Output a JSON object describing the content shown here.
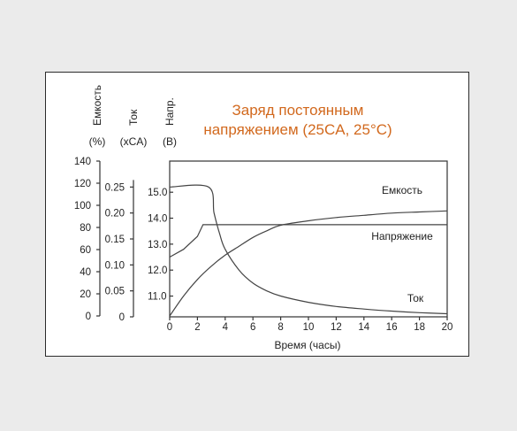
{
  "chart_data": {
    "type": "line",
    "title_lines": [
      "Заряд постоянным",
      "напряжением (25CA, 25°C)"
    ],
    "xlabel": "Время (часы)",
    "x_ticks": [
      0,
      2,
      4,
      6,
      8,
      10,
      12,
      14,
      16,
      18,
      20
    ],
    "xlim": [
      0,
      20
    ],
    "axes": [
      {
        "id": "capacity",
        "label": "Емкость",
        "unit": "(%)",
        "ticks": [
          0,
          20,
          40,
          60,
          80,
          100,
          120,
          140
        ],
        "lim": [
          0,
          140
        ]
      },
      {
        "id": "current",
        "label": "Ток",
        "unit": "(xCA)",
        "ticks": [
          "0",
          "0.05",
          "0.10",
          "0.15",
          "0.20",
          "0.25"
        ],
        "lim": [
          0,
          0.3
        ]
      },
      {
        "id": "voltage",
        "label": "Напр.",
        "unit": "(B)",
        "ticks": [
          "11.0",
          "12.0",
          "13.0",
          "14.0",
          "15.0"
        ],
        "lim": [
          10.2,
          16.2
        ]
      }
    ],
    "series": [
      {
        "name": "Емкость",
        "axis": "capacity",
        "x": [
          0,
          1,
          2,
          3,
          4,
          5,
          6,
          7,
          8,
          10,
          12,
          14,
          16,
          18,
          20
        ],
        "y": [
          0,
          18,
          33,
          45,
          55,
          63,
          71,
          77,
          82,
          86,
          89,
          91,
          93,
          94,
          95
        ]
      },
      {
        "name": "Напряжение",
        "axis": "voltage",
        "x": [
          0,
          1,
          2,
          2.4,
          3,
          6,
          10,
          14,
          20
        ],
        "y": [
          12.5,
          12.8,
          13.3,
          13.75,
          13.75,
          13.75,
          13.75,
          13.75,
          13.75
        ]
      },
      {
        "name": "Ток",
        "axis": "current",
        "x": [
          0,
          2.8,
          3.2,
          3.6,
          4,
          5,
          6,
          7,
          8,
          10,
          12,
          14,
          16,
          18,
          20
        ],
        "y": [
          0.25,
          0.25,
          0.2,
          0.16,
          0.13,
          0.09,
          0.065,
          0.05,
          0.04,
          0.028,
          0.02,
          0.015,
          0.011,
          0.008,
          0.006
        ]
      }
    ]
  }
}
